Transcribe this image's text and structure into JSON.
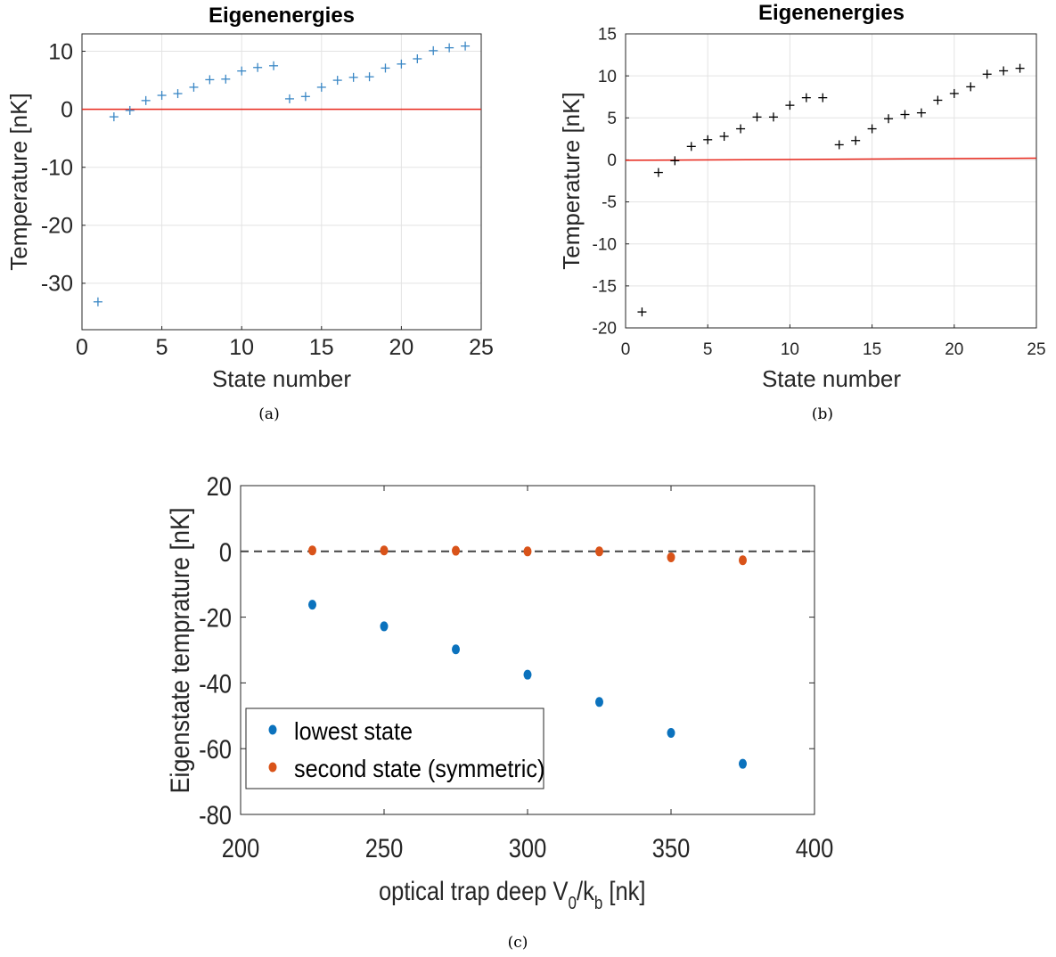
{
  "chart_data": [
    {
      "id": "a",
      "type": "scatter",
      "title": "Eigenenergies",
      "xlabel": "State number",
      "ylabel": "Temperature [nK]",
      "caption": "(a)",
      "xlim": [
        0,
        25
      ],
      "ylim": [
        -38,
        13
      ],
      "xticks": [
        0,
        5,
        10,
        15,
        20,
        25
      ],
      "yticks": [
        10,
        0,
        -10,
        -20,
        -30
      ],
      "grid": true,
      "marker": "+",
      "marker_color": "#3a87c5",
      "reference_line": {
        "y": 0,
        "color": "#e8261a"
      },
      "x": [
        1,
        2,
        3,
        4,
        5,
        6,
        7,
        8,
        9,
        10,
        11,
        12,
        13,
        14,
        15,
        16,
        17,
        18,
        19,
        20,
        21,
        22,
        23,
        24
      ],
      "y": [
        -33.2,
        -1.3,
        -0.2,
        1.5,
        2.4,
        2.7,
        3.8,
        5.1,
        5.2,
        6.6,
        7.2,
        7.5,
        1.8,
        2.2,
        3.8,
        5.0,
        5.5,
        5.6,
        7.1,
        7.8,
        8.7,
        10.1,
        10.6,
        10.9
      ]
    },
    {
      "id": "b",
      "type": "scatter",
      "title": "Eigenenergies",
      "xlabel": "State number",
      "ylabel": "Temperature [nK]",
      "caption": "(b)",
      "xlim": [
        0,
        25
      ],
      "ylim": [
        -20,
        15
      ],
      "xticks": [
        0,
        5,
        10,
        15,
        20,
        25
      ],
      "yticks": [
        15,
        10,
        5,
        0,
        -5,
        -10,
        -15,
        -20
      ],
      "grid": true,
      "marker": "+",
      "marker_color": "#000000",
      "reference_line": {
        "y0": -0.05,
        "y1": 0.2,
        "color": "#e8261a"
      },
      "x": [
        1,
        2,
        3,
        4,
        5,
        6,
        7,
        8,
        9,
        10,
        11,
        12,
        13,
        14,
        15,
        16,
        17,
        18,
        19,
        20,
        21,
        22,
        23,
        24
      ],
      "y": [
        -18.1,
        -1.5,
        -0.1,
        1.6,
        2.4,
        2.8,
        3.7,
        5.1,
        5.1,
        6.5,
        7.4,
        7.4,
        1.8,
        2.3,
        3.7,
        4.9,
        5.4,
        5.6,
        7.1,
        7.9,
        8.7,
        10.2,
        10.6,
        10.9
      ]
    },
    {
      "id": "c",
      "type": "scatter",
      "title": "",
      "xlabel": "optical trap deep V",
      "xlabel_sub1": "0",
      "xlabel_mid": "/k",
      "xlabel_sub2": "b",
      "xlabel_end": " [nk]",
      "ylabel": "Eigenstate temprature [nK]",
      "caption": "(c)",
      "xlim": [
        200,
        400
      ],
      "ylim": [
        -80,
        20
      ],
      "xticks": [
        200,
        250,
        300,
        350,
        400
      ],
      "yticks": [
        20,
        0,
        -20,
        -40,
        -60,
        -80
      ],
      "grid": false,
      "reference_line": {
        "y": 0,
        "style": "dashed",
        "color": "#444444"
      },
      "legend": "bottom-left",
      "series": [
        {
          "name": "lowest state",
          "color": "#0b72bd",
          "x": [
            225,
            250,
            275,
            300,
            325,
            350,
            375
          ],
          "y": [
            -16.2,
            -22.8,
            -29.8,
            -37.5,
            -45.8,
            -55.2,
            -64.6
          ]
        },
        {
          "name": "second state (symmetric)",
          "color": "#d95319",
          "x": [
            225,
            250,
            275,
            300,
            325,
            350,
            375
          ],
          "y": [
            0.3,
            0.3,
            0.2,
            0.0,
            0.0,
            -1.8,
            -2.7
          ]
        }
      ]
    }
  ]
}
